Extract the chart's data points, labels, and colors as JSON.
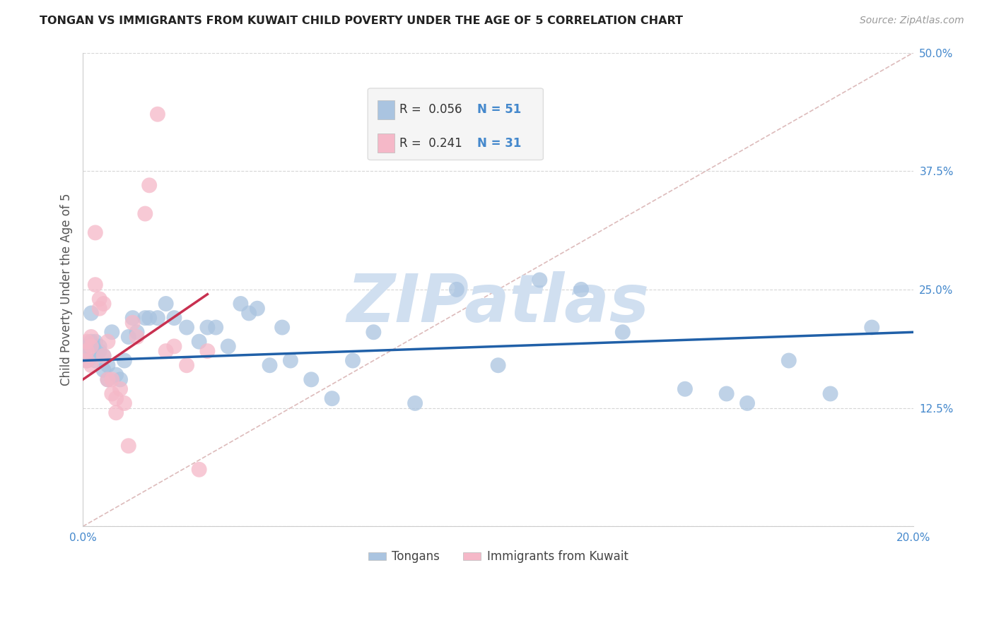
{
  "title": "TONGAN VS IMMIGRANTS FROM KUWAIT CHILD POVERTY UNDER THE AGE OF 5 CORRELATION CHART",
  "source": "Source: ZipAtlas.com",
  "ylabel": "Child Poverty Under the Age of 5",
  "xlim": [
    0,
    0.2
  ],
  "ylim": [
    0,
    0.5
  ],
  "yticks": [
    0.0,
    0.125,
    0.25,
    0.375,
    0.5
  ],
  "ytick_labels": [
    "",
    "12.5%",
    "25.0%",
    "37.5%",
    "50.0%"
  ],
  "xticks": [
    0.0,
    0.05,
    0.1,
    0.15,
    0.2
  ],
  "xtick_labels": [
    "0.0%",
    "",
    "",
    "",
    "20.0%"
  ],
  "tongans_color": "#aac4e0",
  "kuwait_color": "#f5b8c8",
  "trend_tongans_color": "#2060a8",
  "trend_kuwait_color": "#c83050",
  "ref_line_color": "#ddbbbb",
  "background": "#ffffff",
  "watermark": "ZIPatlas",
  "watermark_color": "#d0dff0",
  "legend_box_color": "#f5f5f5",
  "legend_border_color": "#dddddd",
  "tick_color": "#4488cc",
  "tongans_x": [
    0.001,
    0.001,
    0.002,
    0.002,
    0.003,
    0.003,
    0.004,
    0.004,
    0.005,
    0.005,
    0.006,
    0.006,
    0.007,
    0.008,
    0.009,
    0.01,
    0.011,
    0.012,
    0.013,
    0.015,
    0.016,
    0.018,
    0.02,
    0.022,
    0.025,
    0.028,
    0.03,
    0.032,
    0.035,
    0.038,
    0.04,
    0.042,
    0.045,
    0.048,
    0.05,
    0.055,
    0.06,
    0.065,
    0.07,
    0.08,
    0.09,
    0.1,
    0.11,
    0.12,
    0.13,
    0.145,
    0.155,
    0.16,
    0.17,
    0.18,
    0.19
  ],
  "tongans_y": [
    0.175,
    0.19,
    0.195,
    0.225,
    0.175,
    0.195,
    0.185,
    0.19,
    0.18,
    0.165,
    0.17,
    0.155,
    0.205,
    0.16,
    0.155,
    0.175,
    0.2,
    0.22,
    0.205,
    0.22,
    0.22,
    0.22,
    0.235,
    0.22,
    0.21,
    0.195,
    0.21,
    0.21,
    0.19,
    0.235,
    0.225,
    0.23,
    0.17,
    0.21,
    0.175,
    0.155,
    0.135,
    0.175,
    0.205,
    0.13,
    0.25,
    0.17,
    0.26,
    0.25,
    0.205,
    0.145,
    0.14,
    0.13,
    0.175,
    0.14,
    0.21
  ],
  "kuwait_x": [
    0.001,
    0.001,
    0.001,
    0.002,
    0.002,
    0.002,
    0.003,
    0.003,
    0.004,
    0.004,
    0.005,
    0.005,
    0.006,
    0.006,
    0.007,
    0.007,
    0.008,
    0.008,
    0.009,
    0.01,
    0.011,
    0.012,
    0.013,
    0.015,
    0.016,
    0.018,
    0.02,
    0.022,
    0.025,
    0.028,
    0.03
  ],
  "kuwait_y": [
    0.185,
    0.195,
    0.175,
    0.19,
    0.17,
    0.2,
    0.31,
    0.255,
    0.24,
    0.23,
    0.235,
    0.18,
    0.195,
    0.155,
    0.155,
    0.14,
    0.135,
    0.12,
    0.145,
    0.13,
    0.085,
    0.215,
    0.2,
    0.33,
    0.36,
    0.435,
    0.185,
    0.19,
    0.17,
    0.06,
    0.185
  ],
  "tongans_trend_x0": 0.0,
  "tongans_trend_x1": 0.2,
  "tongans_trend_y0": 0.175,
  "tongans_trend_y1": 0.205,
  "kuwait_trend_x0": 0.0,
  "kuwait_trend_x1": 0.03,
  "kuwait_trend_y0": 0.155,
  "kuwait_trend_y1": 0.245,
  "ref_line_x0": 0.0,
  "ref_line_x1": 0.2,
  "ref_line_y0": 0.0,
  "ref_line_y1": 0.5
}
